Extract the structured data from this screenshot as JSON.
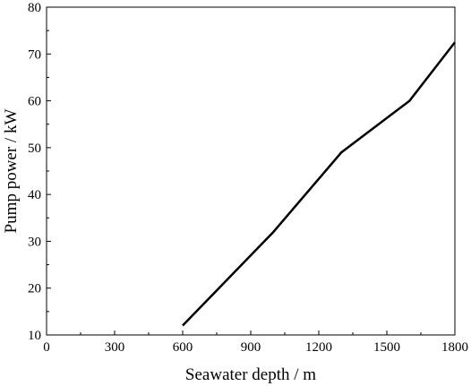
{
  "chart_data": {
    "type": "line",
    "title": "",
    "xlabel": "Seawater depth / m",
    "ylabel": "Pump power / kW",
    "xlim": [
      0,
      1800
    ],
    "ylim": [
      10,
      80
    ],
    "xticks": [
      0,
      300,
      600,
      900,
      1200,
      1500,
      1800
    ],
    "yticks": [
      10,
      20,
      30,
      40,
      50,
      60,
      70,
      80
    ],
    "grid": false,
    "legend": "none",
    "series": [
      {
        "x": [
          600,
          1000,
          1300,
          1600,
          1800
        ],
        "y": [
          12,
          32,
          49,
          60,
          72.5
        ],
        "color": "#000000"
      }
    ]
  }
}
